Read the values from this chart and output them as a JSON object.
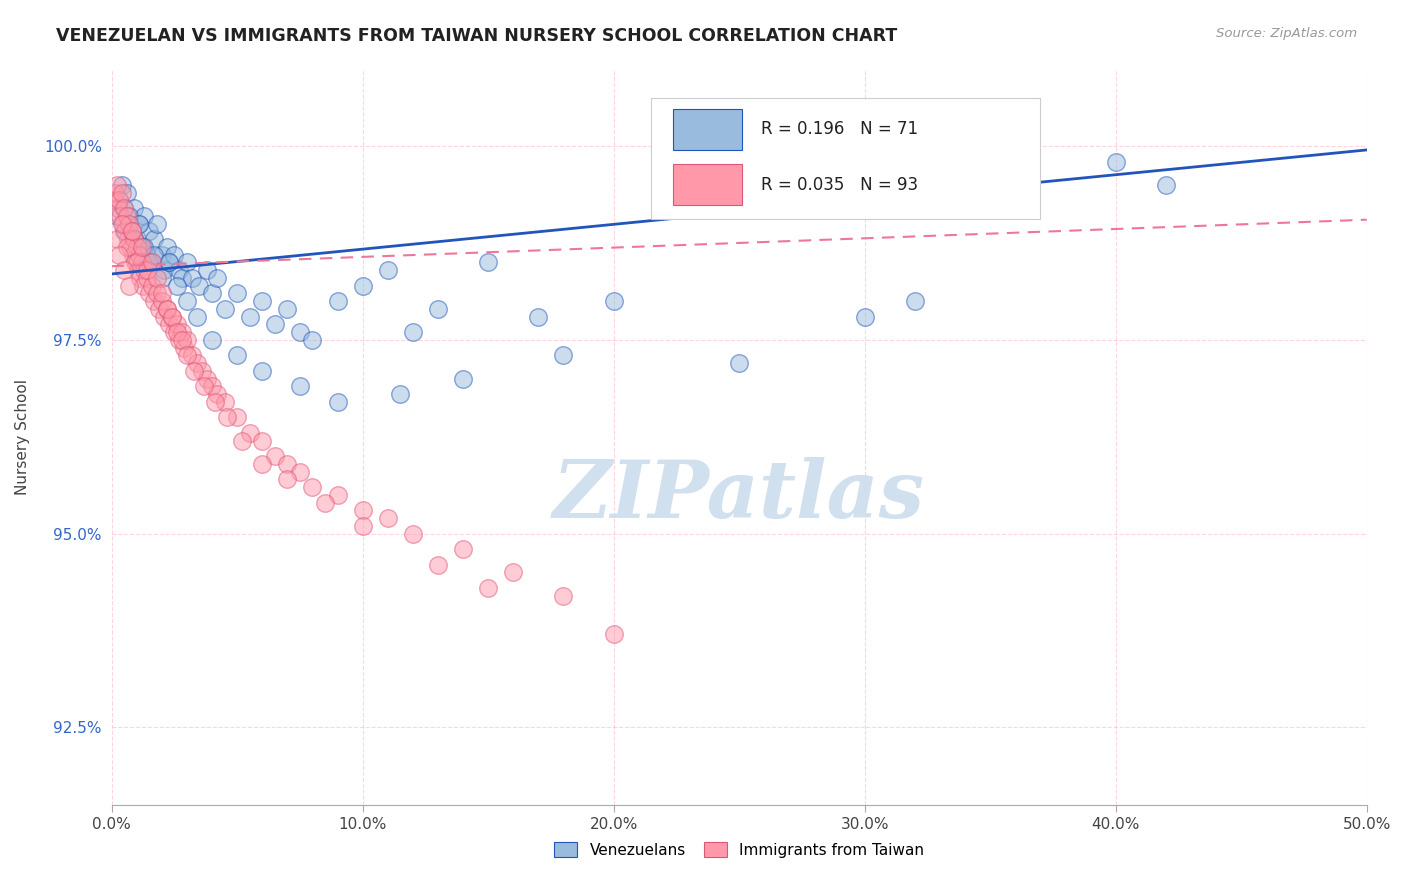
{
  "title": "VENEZUELAN VS IMMIGRANTS FROM TAIWAN NURSERY SCHOOL CORRELATION CHART",
  "source_text": "Source: ZipAtlas.com",
  "ylabel": "Nursery School",
  "xmin": 0.0,
  "xmax": 50.0,
  "ymin": 91.5,
  "ymax": 101.0,
  "yticks": [
    92.5,
    95.0,
    97.5,
    100.0
  ],
  "xticks": [
    0.0,
    10.0,
    20.0,
    30.0,
    40.0,
    50.0
  ],
  "xtick_labels": [
    "0.0%",
    "10.0%",
    "20.0%",
    "30.0%",
    "40.0%",
    "50.0%"
  ],
  "ytick_labels": [
    "92.5%",
    "95.0%",
    "97.5%",
    "100.0%"
  ],
  "legend_labels": [
    "Venezuelans",
    "Immigrants from Taiwan"
  ],
  "legend_r": [
    0.196,
    0.035
  ],
  "legend_n": [
    71,
    93
  ],
  "blue_color": "#99BBDD",
  "pink_color": "#FF99AA",
  "trend_blue": "#2255BB",
  "trend_pink": "#EE7799",
  "watermark": "ZIPatlas",
  "watermark_color": "#CCDDED",
  "blue_trend_x0": 0.0,
  "blue_trend_y0": 98.35,
  "blue_trend_x1": 50.0,
  "blue_trend_y1": 99.95,
  "pink_trend_x0": 0.0,
  "pink_trend_y0": 98.45,
  "pink_trend_x1": 50.0,
  "pink_trend_y1": 99.05,
  "venezuelan_x": [
    0.2,
    0.3,
    0.4,
    0.5,
    0.6,
    0.7,
    0.8,
    0.9,
    1.0,
    1.1,
    1.2,
    1.3,
    1.4,
    1.5,
    1.6,
    1.7,
    1.8,
    2.0,
    2.1,
    2.2,
    2.3,
    2.5,
    2.7,
    2.8,
    3.0,
    3.2,
    3.5,
    3.8,
    4.0,
    4.2,
    4.5,
    5.0,
    5.5,
    6.0,
    6.5,
    7.0,
    7.5,
    8.0,
    9.0,
    10.0,
    11.0,
    12.0,
    13.0,
    15.0,
    17.0,
    20.0,
    25.0,
    32.0,
    40.0,
    42.0,
    0.5,
    0.7,
    0.9,
    1.1,
    1.3,
    1.5,
    1.7,
    2.0,
    2.3,
    2.6,
    3.0,
    3.4,
    4.0,
    5.0,
    6.0,
    7.5,
    9.0,
    11.5,
    14.0,
    18.0,
    30.0
  ],
  "venezuelan_y": [
    99.1,
    99.3,
    99.5,
    99.2,
    99.4,
    99.0,
    98.9,
    99.2,
    98.8,
    99.0,
    98.7,
    99.1,
    98.6,
    98.9,
    98.5,
    98.8,
    99.0,
    98.6,
    98.4,
    98.7,
    98.5,
    98.6,
    98.4,
    98.3,
    98.5,
    98.3,
    98.2,
    98.4,
    98.1,
    98.3,
    97.9,
    98.1,
    97.8,
    98.0,
    97.7,
    97.9,
    97.6,
    97.5,
    98.0,
    98.2,
    98.4,
    97.6,
    97.9,
    98.5,
    97.8,
    98.0,
    97.2,
    98.0,
    99.8,
    99.5,
    98.9,
    99.1,
    98.8,
    99.0,
    98.7,
    98.5,
    98.6,
    98.3,
    98.5,
    98.2,
    98.0,
    97.8,
    97.5,
    97.3,
    97.1,
    96.9,
    96.7,
    96.8,
    97.0,
    97.3,
    97.8
  ],
  "taiwan_x": [
    0.1,
    0.15,
    0.2,
    0.25,
    0.3,
    0.35,
    0.4,
    0.45,
    0.5,
    0.55,
    0.6,
    0.65,
    0.7,
    0.75,
    0.8,
    0.85,
    0.9,
    0.95,
    1.0,
    1.05,
    1.1,
    1.15,
    1.2,
    1.25,
    1.3,
    1.4,
    1.5,
    1.6,
    1.7,
    1.8,
    1.9,
    2.0,
    2.1,
    2.2,
    2.3,
    2.4,
    2.5,
    2.6,
    2.7,
    2.8,
    2.9,
    3.0,
    3.2,
    3.4,
    3.6,
    3.8,
    4.0,
    4.2,
    4.5,
    5.0,
    5.5,
    6.0,
    6.5,
    7.0,
    7.5,
    8.0,
    9.0,
    10.0,
    11.0,
    12.0,
    14.0,
    16.0,
    18.0,
    0.2,
    0.4,
    0.6,
    0.8,
    1.0,
    1.2,
    1.4,
    1.6,
    1.8,
    2.0,
    2.2,
    2.4,
    2.6,
    2.8,
    3.0,
    3.3,
    3.7,
    4.1,
    4.6,
    5.2,
    6.0,
    7.0,
    8.5,
    10.0,
    13.0,
    15.0,
    20.0,
    0.3,
    0.5,
    0.7
  ],
  "taiwan_y": [
    99.3,
    99.4,
    99.5,
    99.2,
    99.3,
    99.1,
    99.4,
    99.0,
    99.2,
    98.9,
    99.1,
    98.8,
    99.0,
    98.7,
    98.9,
    98.6,
    98.8,
    98.5,
    98.7,
    98.4,
    98.6,
    98.3,
    98.5,
    98.2,
    98.4,
    98.3,
    98.1,
    98.2,
    98.0,
    98.1,
    97.9,
    98.0,
    97.8,
    97.9,
    97.7,
    97.8,
    97.6,
    97.7,
    97.5,
    97.6,
    97.4,
    97.5,
    97.3,
    97.2,
    97.1,
    97.0,
    96.9,
    96.8,
    96.7,
    96.5,
    96.3,
    96.2,
    96.0,
    95.9,
    95.8,
    95.6,
    95.5,
    95.3,
    95.2,
    95.0,
    94.8,
    94.5,
    94.2,
    98.8,
    99.0,
    98.7,
    98.9,
    98.5,
    98.7,
    98.4,
    98.5,
    98.3,
    98.1,
    97.9,
    97.8,
    97.6,
    97.5,
    97.3,
    97.1,
    96.9,
    96.7,
    96.5,
    96.2,
    95.9,
    95.7,
    95.4,
    95.1,
    94.6,
    94.3,
    93.7,
    98.6,
    98.4,
    98.2
  ]
}
